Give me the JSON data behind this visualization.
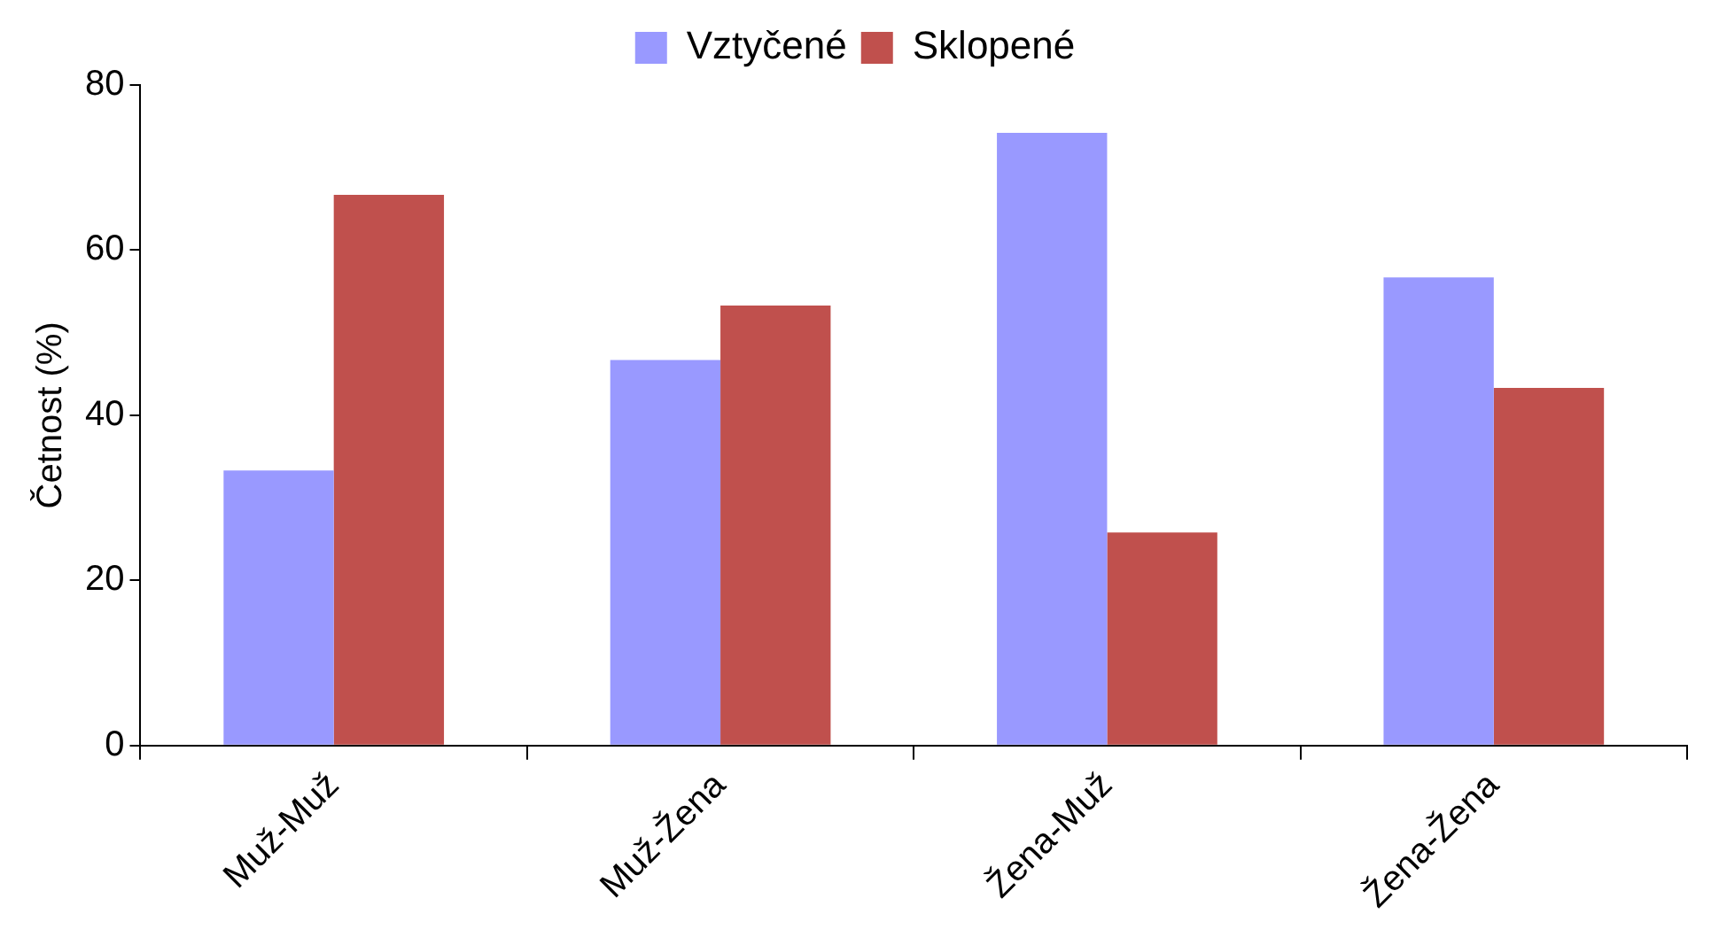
{
  "chart_data": {
    "type": "bar",
    "ylabel": "Četnost (%)",
    "categories": [
      "Muž-Muž",
      "Muž-Žena",
      "Žena-Muž",
      "Žena-Žena"
    ],
    "series": [
      {
        "name": "Vztyčené",
        "color": "#9999ff",
        "values": [
          33.3,
          46.7,
          74.2,
          56.7
        ]
      },
      {
        "name": "Sklopené",
        "color": "#c0504d",
        "values": [
          66.7,
          53.3,
          25.8,
          43.3
        ]
      }
    ],
    "ylim": [
      0,
      80
    ],
    "yticks": [
      0,
      20,
      40,
      60,
      80
    ],
    "grid": false,
    "legend": "top"
  }
}
